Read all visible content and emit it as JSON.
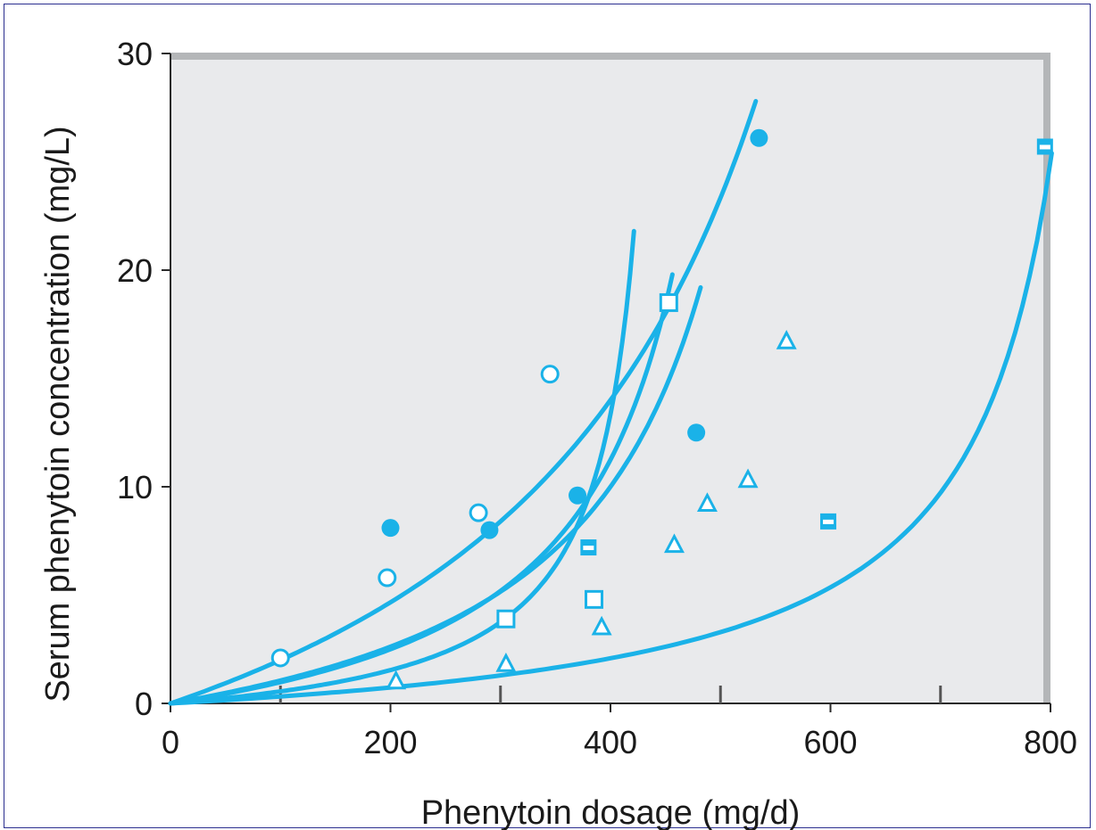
{
  "chart_data": {
    "type": "scatter",
    "title": "",
    "xlabel": "Phenytoin dosage (mg/d)",
    "ylabel": "Serum phenytoin concentration (mg/L)",
    "xlim": [
      0,
      800
    ],
    "ylim": [
      0,
      30
    ],
    "x_ticks": [
      0,
      200,
      400,
      600,
      800
    ],
    "x_tick_labels": [
      "0",
      "200",
      "400",
      "600",
      "800"
    ],
    "x_minor_ticks": [
      100,
      300,
      500,
      700
    ],
    "y_ticks": [
      0,
      10,
      20,
      30
    ],
    "y_tick_labels": [
      "0",
      "10",
      "20",
      "30"
    ],
    "grid": false,
    "legend": "none",
    "colors": {
      "series": "#1ab2e8",
      "plot_bg": "#e9eaec",
      "frame": "#b4b6b8",
      "axis": "#2a2a2a",
      "border": "#2b2f8f"
    },
    "series": [
      {
        "marker": "open-circle",
        "points": [
          [
            100,
            2.1
          ],
          [
            197,
            5.8
          ],
          [
            280,
            8.8
          ],
          [
            345,
            15.2
          ]
        ],
        "curve": {
          "vmax": 620,
          "km": 5.5,
          "max_conc": 19.2
        }
      },
      {
        "marker": "filled-circle",
        "points": [
          [
            200,
            8.1
          ],
          [
            290,
            8.0
          ],
          [
            370,
            9.6
          ],
          [
            478,
            12.5
          ],
          [
            535,
            26.1
          ]
        ],
        "curve": {
          "vmax": 800,
          "km": 14,
          "max_conc": 27.8
        }
      },
      {
        "marker": "open-square",
        "points": [
          [
            305,
            3.9
          ],
          [
            385,
            4.8
          ],
          [
            453,
            18.5
          ]
        ],
        "curve": {
          "vmax": 460,
          "km": 2,
          "max_conc": 21.8
        }
      },
      {
        "marker": "half-square",
        "points": [
          [
            380,
            7.2
          ],
          [
            598,
            8.4
          ],
          [
            795,
            25.7
          ]
        ],
        "curve": {
          "vmax": 880,
          "km": 2.5,
          "max_conc": 25.4
        }
      },
      {
        "marker": "open-triangle",
        "points": [
          [
            205,
            1.0
          ],
          [
            305,
            1.8
          ],
          [
            392,
            3.5
          ],
          [
            458,
            7.3
          ],
          [
            488,
            9.2
          ],
          [
            525,
            10.3
          ],
          [
            560,
            16.7
          ]
        ],
        "curve": {
          "vmax": 560,
          "km": 4.5,
          "max_conc": 19.8
        }
      }
    ]
  }
}
